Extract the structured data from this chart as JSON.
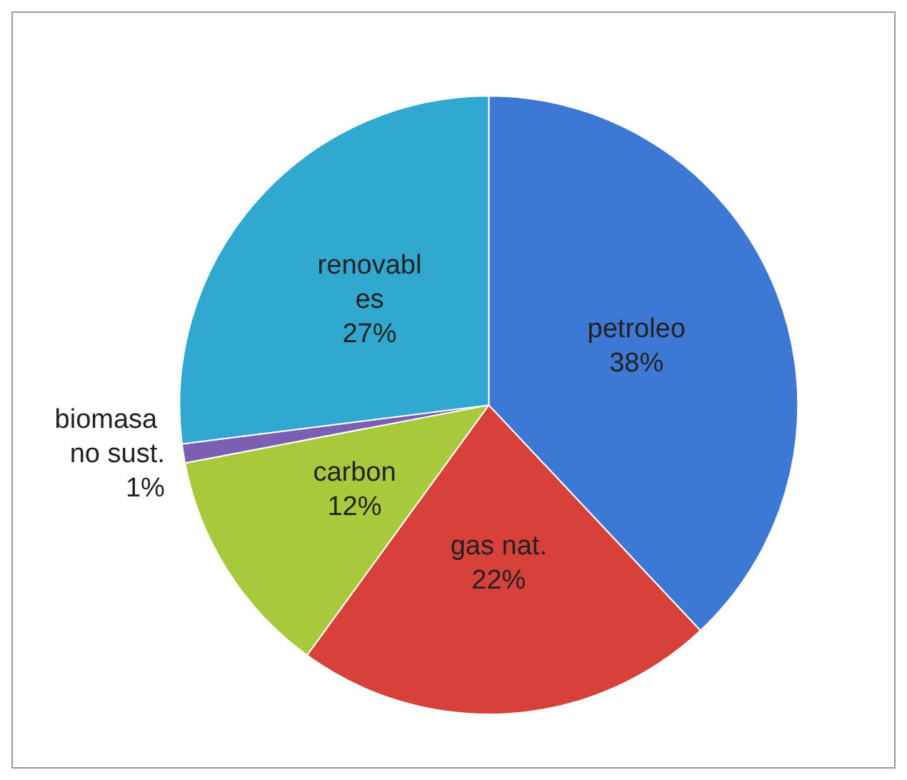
{
  "chart_data": {
    "type": "pie",
    "categories": [
      "petroleo",
      "gas nat.",
      "carbon",
      "biomasa no sust.",
      "renovables"
    ],
    "values": [
      38,
      22,
      12,
      1,
      27
    ],
    "value_labels": [
      "38%",
      "22%",
      "12%",
      "1%",
      "27%"
    ],
    "colors": [
      "#3d78d4",
      "#d8403a",
      "#a9c93c",
      "#7c5fb2",
      "#30a8cf"
    ],
    "legend": false
  }
}
